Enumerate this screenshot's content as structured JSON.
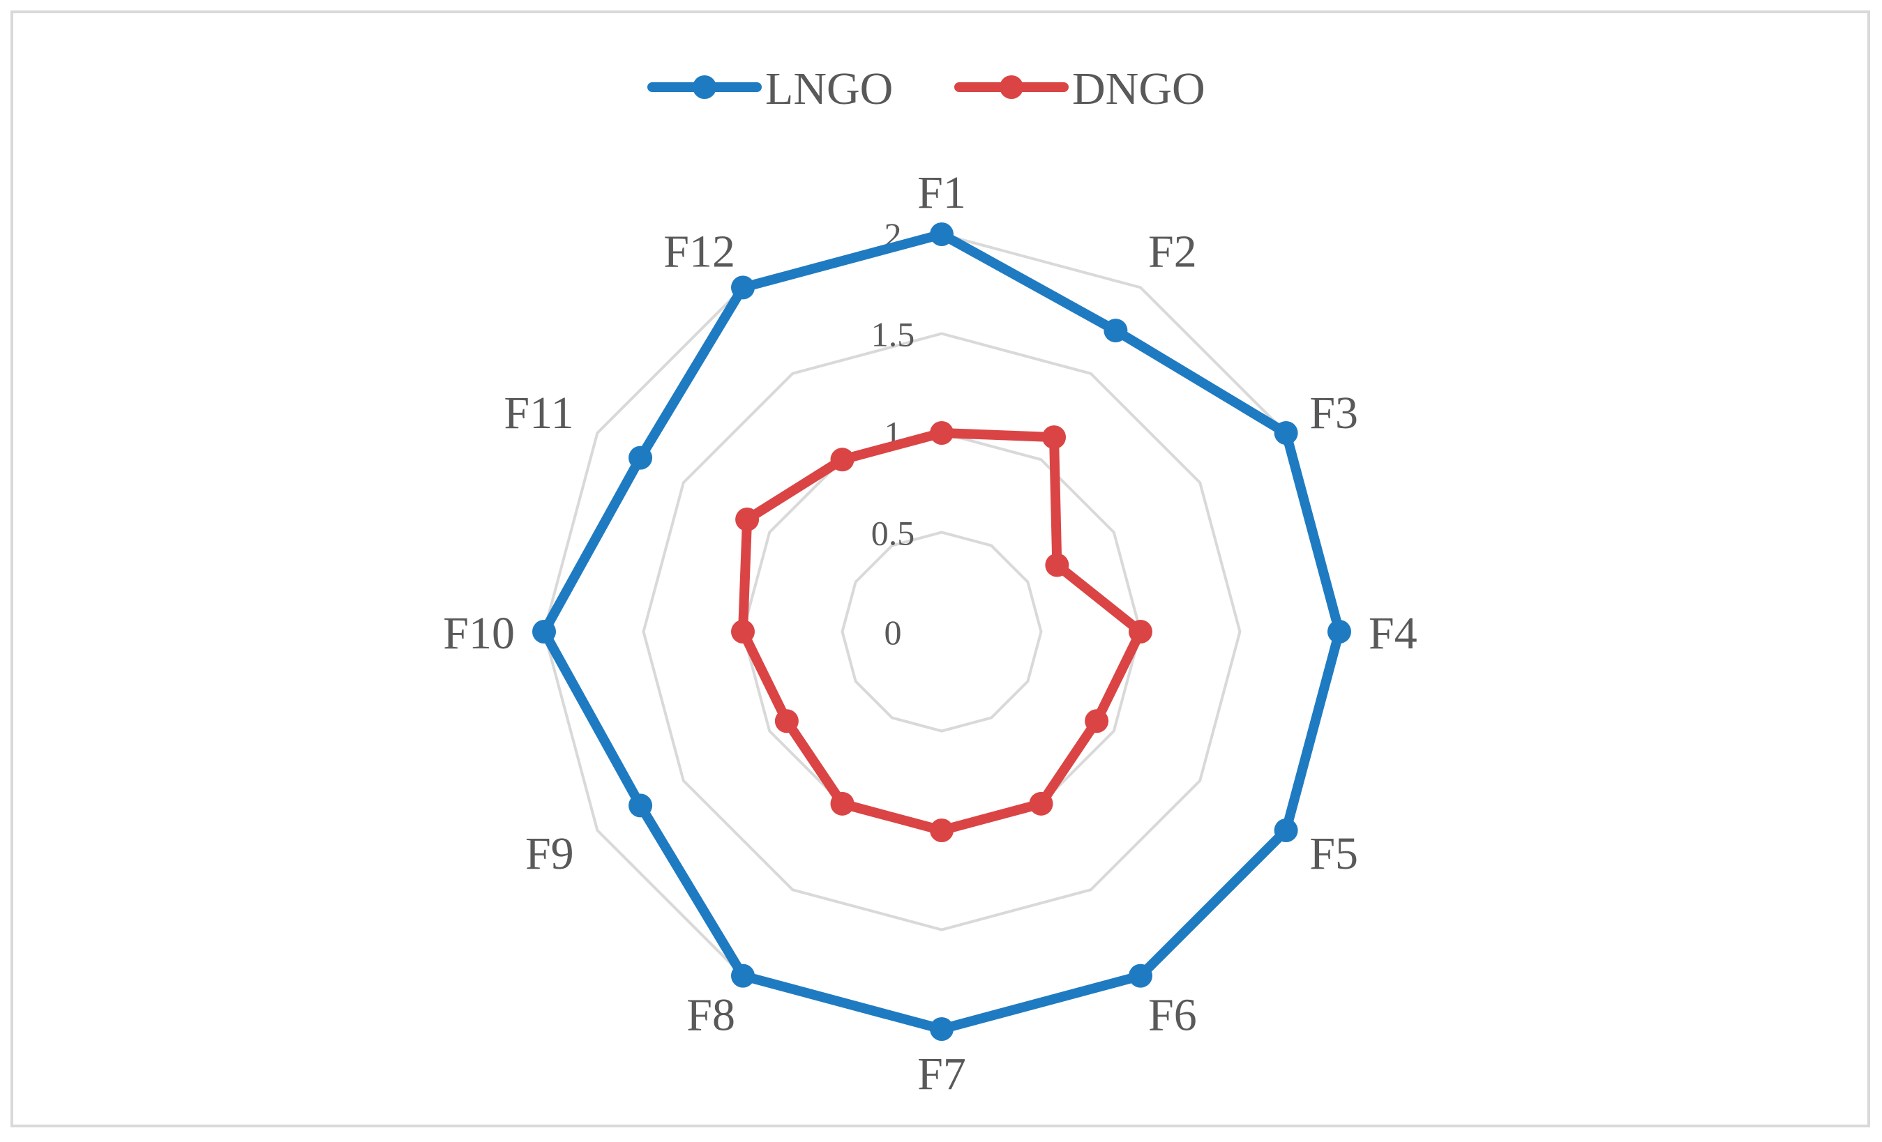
{
  "chart_data": {
    "type": "radar",
    "categories": [
      "F1",
      "F2",
      "F3",
      "F4",
      "F5",
      "F6",
      "F7",
      "F8",
      "F9",
      "F10",
      "F11",
      "F12"
    ],
    "series": [
      {
        "name": "LNGO",
        "color": "#1f7bc1",
        "values": [
          2.0,
          1.75,
          2.0,
          2.0,
          2.0,
          2.0,
          2.0,
          2.0,
          1.75,
          2.0,
          1.75,
          2.0
        ]
      },
      {
        "name": "DNGO",
        "color": "#db4444",
        "values": [
          1.0,
          1.13,
          0.67,
          1.0,
          0.9,
          1.0,
          1.0,
          1.0,
          0.9,
          1.0,
          1.13,
          1.0
        ]
      }
    ],
    "r_axis": {
      "min": 0,
      "max": 2,
      "ticks": [
        "0",
        "0.5",
        "1",
        "1.5",
        "2"
      ]
    },
    "grid": true,
    "grid_color": "#d9d9d9",
    "legend_position": "top"
  }
}
